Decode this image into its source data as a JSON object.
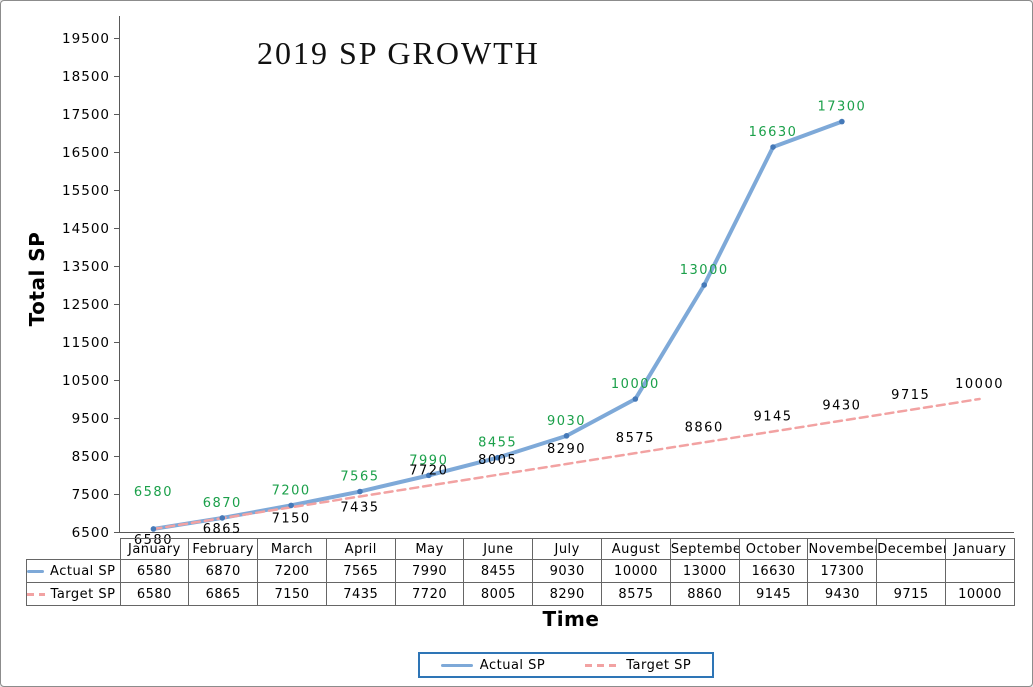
{
  "window": {
    "background": "#ffffff",
    "frame_border_color": "#8c8c8c"
  },
  "chart_data": {
    "type": "line",
    "title": "2019 SP GROWTH",
    "xlabel": "Time",
    "ylabel": "Total SP",
    "categories": [
      "January",
      "February",
      "March",
      "April",
      "May",
      "June",
      "July",
      "August",
      "September",
      "October",
      "November",
      "December",
      "January"
    ],
    "y_ticks": [
      6500,
      7500,
      8500,
      9500,
      10500,
      11500,
      12500,
      13500,
      14500,
      15500,
      16500,
      17500,
      18500,
      19500
    ],
    "ylim": [
      6500,
      19500
    ],
    "grid": false,
    "legend_position": "bottom",
    "data_table_shown": true,
    "data_labels_shown": true,
    "series": [
      {
        "name": "Actual SP",
        "values": [
          6580,
          6870,
          7200,
          7565,
          7990,
          8455,
          9030,
          10000,
          13000,
          16630,
          17300,
          null,
          null
        ],
        "color": "#7EA9D8",
        "marker_color": "#4579B8",
        "line_style": "solid",
        "label_color": "#1BA04A"
      },
      {
        "name": "Target SP",
        "values": [
          6580,
          6865,
          7150,
          7435,
          7720,
          8005,
          8290,
          8575,
          8860,
          9145,
          9430,
          9715,
          10000
        ],
        "color": "#F2A2A2",
        "marker_color": "#F2A2A2",
        "line_style": "dashed",
        "label_color": "#000000"
      }
    ],
    "colors": {
      "axis": "#595959",
      "table_border": "#666666",
      "legend_border": "#2E75B6",
      "text": "#000000"
    }
  }
}
